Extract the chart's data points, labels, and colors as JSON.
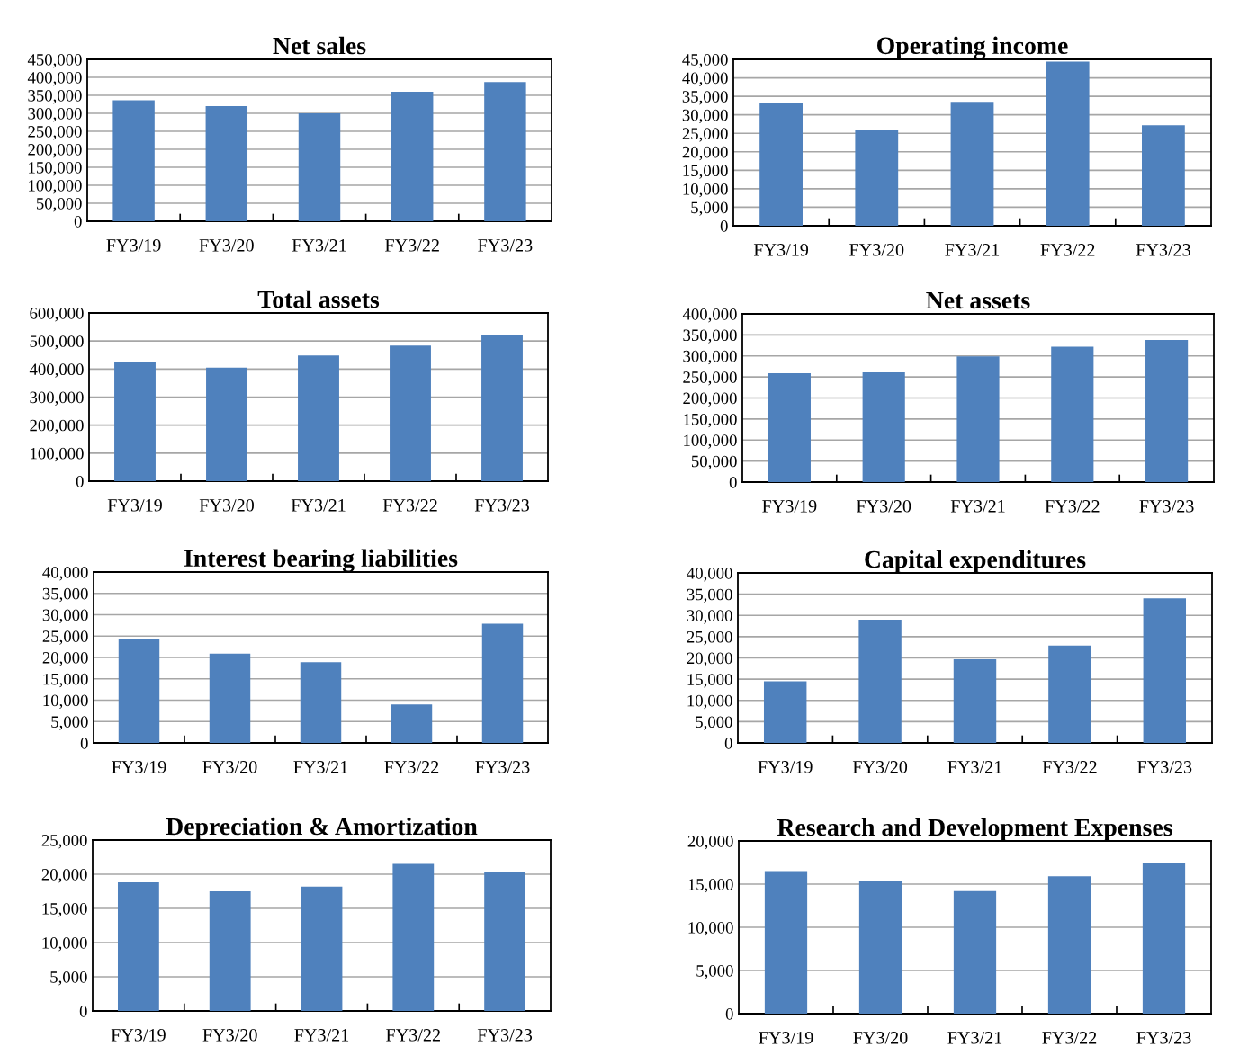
{
  "chart_data": [
    {
      "type": "bar",
      "title": "Net sales",
      "categories": [
        "FY3/19",
        "FY3/20",
        "FY3/21",
        "FY3/22",
        "FY3/23"
      ],
      "values": [
        336000,
        320000,
        300000,
        360000,
        387000
      ],
      "color": "#4f81bd",
      "ylim": [
        0,
        450000
      ],
      "yticks": [
        0,
        {
          "value": 50000,
          "label": "50,000"
        },
        {
          "value": 100000,
          "label": "100,000"
        },
        {
          "value": 150000,
          "label": "150,000"
        },
        {
          "value": 200000,
          "label": "200,000"
        },
        {
          "value": 250000,
          "label": "250,000"
        },
        {
          "value": 300000,
          "label": "300,000"
        },
        {
          "value": 350000,
          "label": "350,000"
        },
        {
          "value": 400000,
          "label": "400,000"
        },
        {
          "value": 450000,
          "label": "450,000"
        }
      ],
      "grid": "y"
    },
    {
      "type": "bar",
      "title": "Operating income",
      "categories": [
        "FY3/19",
        "FY3/20",
        "FY3/21",
        "FY3/22",
        "FY3/23"
      ],
      "values": [
        33100,
        26000,
        33500,
        44400,
        27200
      ],
      "color": "#4f81bd",
      "ylim": [
        0,
        45000
      ],
      "yticks": [
        0,
        {
          "value": 5000,
          "label": "5,000"
        },
        {
          "value": 10000,
          "label": "10,000"
        },
        {
          "value": 15000,
          "label": "15,000"
        },
        {
          "value": 20000,
          "label": "20,000"
        },
        {
          "value": 25000,
          "label": "25,000"
        },
        {
          "value": 30000,
          "label": "30,000"
        },
        {
          "value": 35000,
          "label": "35,000"
        },
        {
          "value": 40000,
          "label": "40,000"
        },
        {
          "value": 45000,
          "label": "45,000"
        }
      ],
      "grid": "y"
    },
    {
      "type": "bar",
      "title": "Total assets",
      "categories": [
        "FY3/19",
        "FY3/20",
        "FY3/21",
        "FY3/22",
        "FY3/23"
      ],
      "values": [
        424000,
        405000,
        448000,
        484000,
        523000
      ],
      "color": "#4f81bd",
      "ylim": [
        0,
        600000
      ],
      "yticks": [
        0,
        {
          "value": 100000,
          "label": "100,000"
        },
        {
          "value": 200000,
          "label": "200,000"
        },
        {
          "value": 300000,
          "label": "300,000"
        },
        {
          "value": 400000,
          "label": "400,000"
        },
        {
          "value": 500000,
          "label": "500,000"
        },
        {
          "value": 600000,
          "label": "600,000"
        }
      ],
      "grid": "y"
    },
    {
      "type": "bar",
      "title": "Net assets",
      "categories": [
        "FY3/19",
        "FY3/20",
        "FY3/21",
        "FY3/22",
        "FY3/23"
      ],
      "values": [
        259000,
        261000,
        299000,
        322000,
        338000
      ],
      "color": "#4f81bd",
      "ylim": [
        0,
        400000
      ],
      "yticks": [
        0,
        {
          "value": 50000,
          "label": "50,000"
        },
        {
          "value": 100000,
          "label": "100,000"
        },
        {
          "value": 150000,
          "label": "150,000"
        },
        {
          "value": 200000,
          "label": "200,000"
        },
        {
          "value": 250000,
          "label": "250,000"
        },
        {
          "value": 300000,
          "label": "300,000"
        },
        {
          "value": 350000,
          "label": "350,000"
        },
        {
          "value": 400000,
          "label": "400,000"
        }
      ],
      "grid": "y"
    },
    {
      "type": "bar",
      "title": "Interest bearing liabilities",
      "categories": [
        "FY3/19",
        "FY3/20",
        "FY3/21",
        "FY3/22",
        "FY3/23"
      ],
      "values": [
        24200,
        20900,
        18900,
        9000,
        27900
      ],
      "color": "#4f81bd",
      "ylim": [
        0,
        40000
      ],
      "yticks": [
        0,
        {
          "value": 5000,
          "label": "5,000"
        },
        {
          "value": 10000,
          "label": "10,000"
        },
        {
          "value": 15000,
          "label": "15,000"
        },
        {
          "value": 20000,
          "label": "20,000"
        },
        {
          "value": 25000,
          "label": "25,000"
        },
        {
          "value": 30000,
          "label": "30,000"
        },
        {
          "value": 35000,
          "label": "35,000"
        },
        {
          "value": 40000,
          "label": "40,000"
        }
      ],
      "grid": "y"
    },
    {
      "type": "bar",
      "title": "Capital expenditures",
      "categories": [
        "FY3/19",
        "FY3/20",
        "FY3/21",
        "FY3/22",
        "FY3/23"
      ],
      "values": [
        14500,
        29000,
        19700,
        22900,
        34000
      ],
      "color": "#4f81bd",
      "ylim": [
        0,
        40000
      ],
      "yticks": [
        0,
        {
          "value": 5000,
          "label": "5,000"
        },
        {
          "value": 10000,
          "label": "10,000"
        },
        {
          "value": 15000,
          "label": "15,000"
        },
        {
          "value": 20000,
          "label": "20,000"
        },
        {
          "value": 25000,
          "label": "25,000"
        },
        {
          "value": 30000,
          "label": "30,000"
        },
        {
          "value": 35000,
          "label": "35,000"
        },
        {
          "value": 40000,
          "label": "40,000"
        }
      ],
      "grid": "y"
    },
    {
      "type": "bar",
      "title": "Depreciation & Amortization",
      "categories": [
        "FY3/19",
        "FY3/20",
        "FY3/21",
        "FY3/22",
        "FY3/23"
      ],
      "values": [
        18800,
        17500,
        18200,
        21500,
        20400
      ],
      "color": "#4f81bd",
      "ylim": [
        0,
        25000
      ],
      "yticks": [
        0,
        {
          "value": 5000,
          "label": "5,000"
        },
        {
          "value": 10000,
          "label": "10,000"
        },
        {
          "value": 15000,
          "label": "15,000"
        },
        {
          "value": 20000,
          "label": "20,000"
        },
        {
          "value": 25000,
          "label": "25,000"
        }
      ],
      "grid": "y"
    },
    {
      "type": "bar",
      "title": "Research and Development Expenses",
      "categories": [
        "FY3/19",
        "FY3/20",
        "FY3/21",
        "FY3/22",
        "FY3/23"
      ],
      "values": [
        16500,
        15300,
        14200,
        15900,
        17500
      ],
      "color": "#4f81bd",
      "ylim": [
        0,
        20000
      ],
      "yticks": [
        0,
        {
          "value": 5000,
          "label": "5,000"
        },
        {
          "value": 10000,
          "label": "10,000"
        },
        {
          "value": 15000,
          "label": "15,000"
        },
        {
          "value": 20000,
          "label": "20,000"
        }
      ],
      "grid": "y"
    }
  ]
}
